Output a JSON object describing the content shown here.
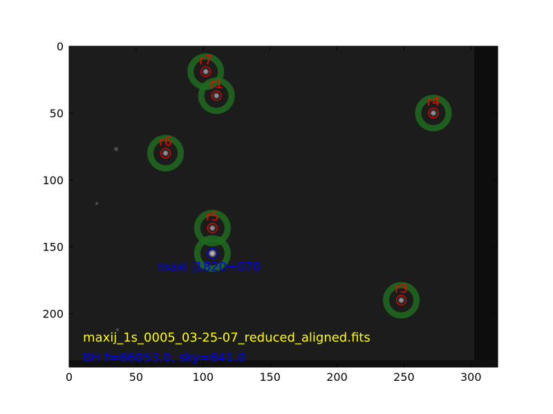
{
  "chart_data": {
    "type": "scatter",
    "kind": "image-with-aperture-overlays",
    "xlim": [
      0,
      320
    ],
    "ylim": [
      240,
      0
    ],
    "x_ticks": [
      0,
      50,
      100,
      150,
      200,
      250,
      300
    ],
    "y_ticks": [
      0,
      50,
      100,
      150,
      200
    ],
    "reference_stars": [
      {
        "label": "r7",
        "x": 102,
        "y": 19
      },
      {
        "label": "r1",
        "x": 110,
        "y": 37
      },
      {
        "label": "r4",
        "x": 272,
        "y": 50
      },
      {
        "label": "r6",
        "x": 72,
        "y": 80
      },
      {
        "label": "r5",
        "x": 107,
        "y": 136
      },
      {
        "label": "r3",
        "x": 248,
        "y": 190
      }
    ],
    "target": {
      "label": "maxi j1820+070",
      "x": 107,
      "y": 155
    },
    "annotations": {
      "filename": "maxij_1s_0005_03-25-07_reduced_aligned.fits",
      "bh_info": "BH f=66053.0, sky=641.0"
    },
    "colors": {
      "reference": "#ff0000",
      "target": "#0000ff",
      "filename": "#ffff00",
      "sky_annulus": "#1e6a1e",
      "background": "#1c1c1c"
    }
  }
}
